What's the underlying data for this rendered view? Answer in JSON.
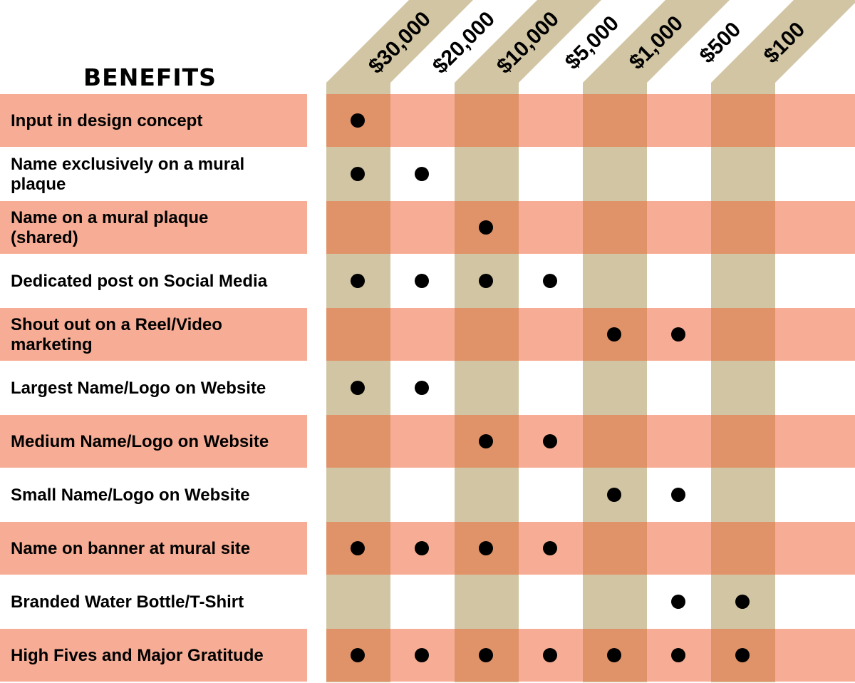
{
  "heading": "BENEFITS",
  "tiers": [
    "$30,000",
    "$20,000",
    "$10,000",
    "$5,000",
    "$1,000",
    "$500",
    "$100"
  ],
  "benefits": [
    {
      "label_lines": [
        "Input in design concept"
      ],
      "included": [
        true,
        false,
        false,
        false,
        false,
        false,
        false
      ]
    },
    {
      "label_lines": [
        "Name exclusively on a mural",
        "plaque"
      ],
      "included": [
        true,
        true,
        false,
        false,
        false,
        false,
        false
      ]
    },
    {
      "label_lines": [
        "Name on a mural plaque",
        "(shared)"
      ],
      "included": [
        false,
        false,
        true,
        false,
        false,
        false,
        false
      ]
    },
    {
      "label_lines": [
        "Dedicated post on Social Media"
      ],
      "included": [
        true,
        true,
        true,
        true,
        false,
        false,
        false
      ]
    },
    {
      "label_lines": [
        "Shout out on a Reel/Video",
        "marketing"
      ],
      "included": [
        false,
        false,
        false,
        false,
        true,
        true,
        false
      ]
    },
    {
      "label_lines": [
        "Largest Name/Logo on Website"
      ],
      "included": [
        true,
        true,
        false,
        false,
        false,
        false,
        false
      ]
    },
    {
      "label_lines": [
        "Medium Name/Logo on Website"
      ],
      "included": [
        false,
        false,
        true,
        true,
        false,
        false,
        false
      ]
    },
    {
      "label_lines": [
        "Small Name/Logo on Website"
      ],
      "included": [
        false,
        false,
        false,
        false,
        true,
        true,
        false
      ]
    },
    {
      "label_lines": [
        "Name on banner at mural site"
      ],
      "included": [
        true,
        true,
        true,
        true,
        false,
        false,
        false
      ]
    },
    {
      "label_lines": [
        "Branded Water Bottle/T-Shirt"
      ],
      "included": [
        false,
        false,
        false,
        false,
        false,
        true,
        true
      ]
    },
    {
      "label_lines": [
        "High Fives and Major Gratitude"
      ],
      "included": [
        true,
        true,
        true,
        true,
        true,
        true,
        true
      ]
    }
  ],
  "colors": {
    "row_band": "#f7ad95",
    "tier_column": "#d2c5a3",
    "overlap": "#e09369",
    "dot": "#000000",
    "background": "#ffffff"
  }
}
